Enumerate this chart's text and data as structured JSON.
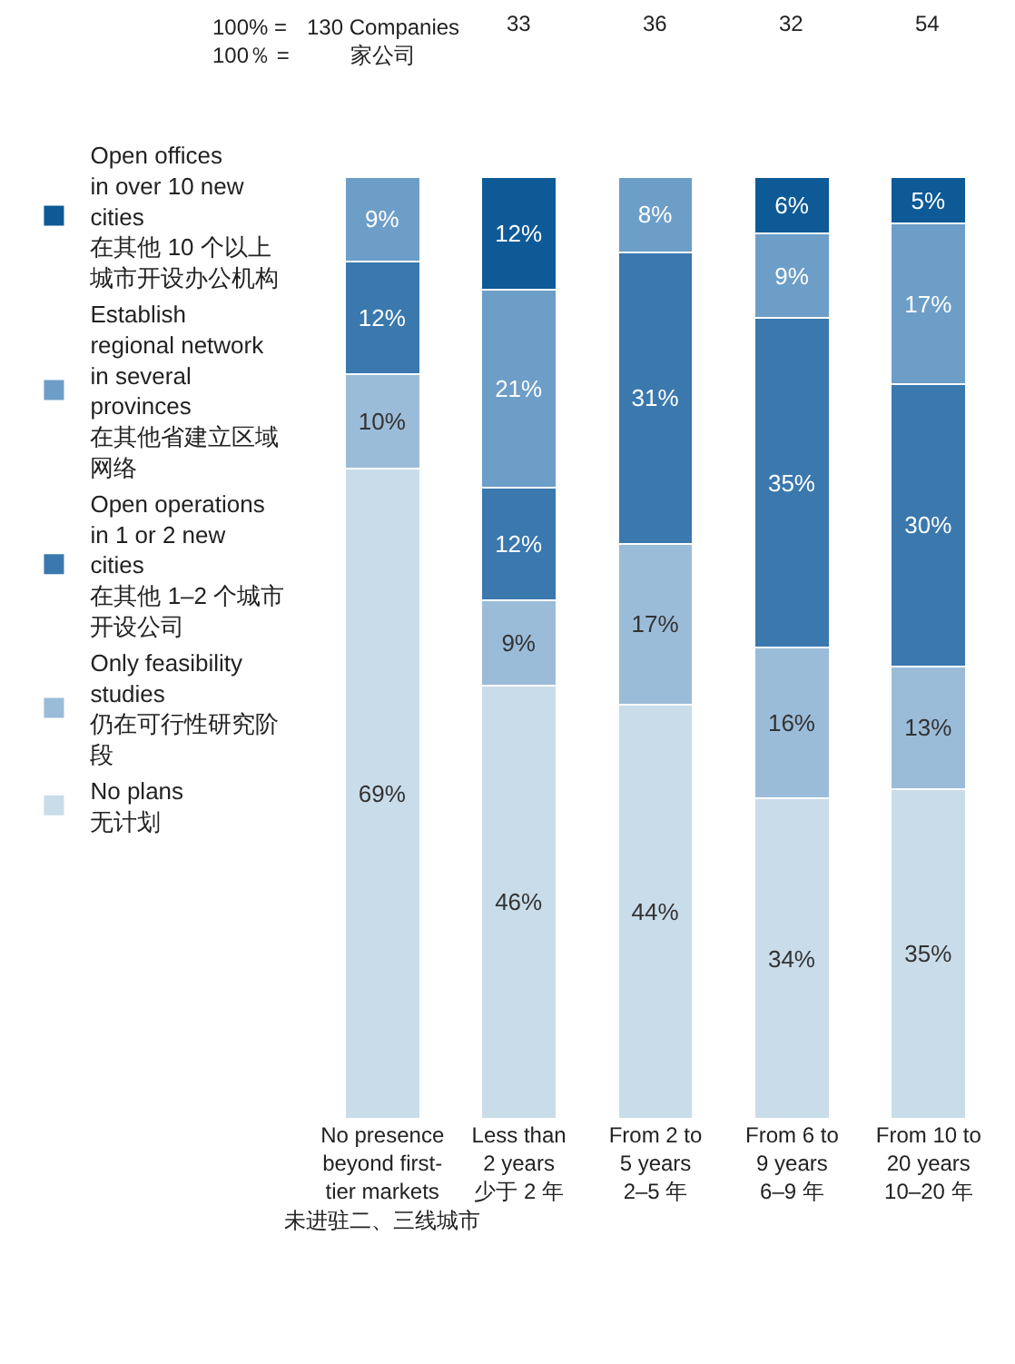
{
  "chart_data": {
    "type": "bar",
    "stacked": true,
    "legend": "left",
    "tick_labels": "x",
    "categories": [
      "No presence\nbeyond first-\ntier markets\n未进驻二、三线城市",
      "Less than\n2 years\n少于 2 年",
      "From 2 to\n5 years\n2–5 年",
      "From 6 to\n9 years\n6–9 年",
      "From 10 to\n20 years\n10–20 年"
    ],
    "series": [
      {
        "name": "No plans\n无计划",
        "color": "#c9dce9",
        "values": [
          69,
          46,
          44,
          34,
          35
        ],
        "value_labels": [
          "69%",
          "46%",
          "44%",
          "34%",
          "35%"
        ]
      },
      {
        "name": "Only feasibility\nstudies\n仍在可行性研究阶段",
        "color": "#9bbcd9",
        "values": [
          10,
          9,
          17,
          16,
          13
        ],
        "value_labels": [
          "10%",
          "9%",
          "17%",
          "16%",
          "13%"
        ]
      },
      {
        "name": "Open operations\nin 1 or 2 new\ncities\n在其他 1–2 个城市开设公司",
        "color": "#3a78ae",
        "values": [
          12,
          12,
          31,
          35,
          30
        ],
        "value_labels": [
          "12%",
          "12%",
          "31%",
          "35%",
          "30%"
        ]
      },
      {
        "name": "Establish\nregional network\nin several\nprovinces\n在其他省建立区域网络",
        "color": "#6d9ec8",
        "values": [
          9,
          21,
          8,
          9,
          17
        ],
        "value_labels": [
          "9%",
          "21%",
          "8%",
          "9%",
          "17%"
        ]
      },
      {
        "name": "Open offices\nin over 10 new\ncities\n在其他 10 个以上城市开设办公机构",
        "color": "#0d5a96",
        "values": [
          null,
          12,
          null,
          6,
          5
        ],
        "value_labels": [
          null,
          "12%",
          null,
          "6%",
          "5%"
        ]
      }
    ],
    "annotations": [
      "100% =\n100％ =",
      "130 Companies\n家公司",
      "33",
      "36",
      "32",
      "54"
    ]
  }
}
